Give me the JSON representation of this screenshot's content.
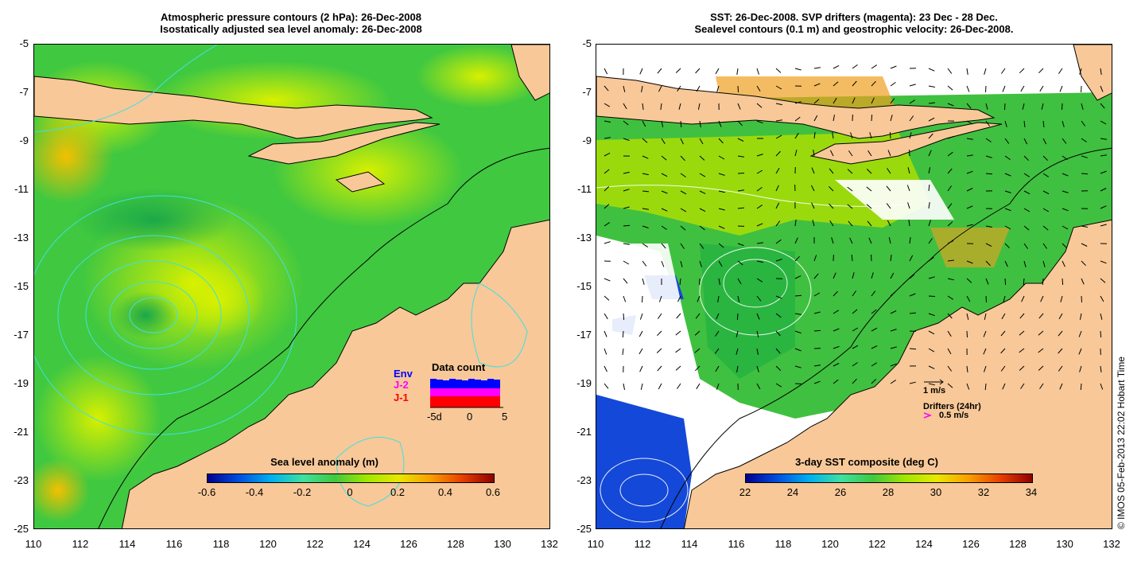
{
  "left_panel": {
    "title_line1": "Atmospheric pressure contours (2 hPa): 26-Dec-2008",
    "title_line2": "Isostatically adjusted sea level anomaly: 26-Dec-2008",
    "colorbar_label": "Sea level anomaly (m)",
    "colorbar_ticks": [
      "-0.6",
      "-0.4",
      "-0.2",
      "0",
      "0.2",
      "0.4",
      "0.6"
    ],
    "inset": {
      "title": "Data count",
      "legend": [
        "Env",
        "J-2",
        "J-1"
      ],
      "legend_colors": [
        "#0000ff",
        "#ff00ff",
        "#ff0000"
      ],
      "x_ticks": [
        "-5d",
        "0",
        "5"
      ]
    }
  },
  "right_panel": {
    "title_line1": "SST: 26-Dec-2008. SVP drifters (magenta): 23 Dec - 28 Dec.",
    "title_line2": "Sealevel contours (0.1 m) and geostrophic velocity: 26-Dec-2008.",
    "colorbar_label": "3-day SST composite (deg C)",
    "colorbar_ticks": [
      "22",
      "24",
      "26",
      "28",
      "30",
      "32",
      "34"
    ],
    "velocity_scale_label": "1 m/s",
    "drifters_label": "Drifters (24hr)",
    "drifter_scale_label": "0.5 m/s"
  },
  "axes": {
    "x_ticks": [
      "110",
      "112",
      "114",
      "116",
      "118",
      "120",
      "122",
      "124",
      "126",
      "128",
      "130",
      "132"
    ],
    "y_ticks": [
      "-5",
      "-7",
      "-9",
      "-11",
      "-13",
      "-15",
      "-17",
      "-19",
      "-21",
      "-23",
      "-25"
    ]
  },
  "copyright": "© IMOS 05-Feb-2013 22:02 Hobart Time",
  "colors": {
    "land": "#f8c898",
    "ocean_green": "#3cc83c",
    "warm_yellow": "#c8f000",
    "cold_blue": "#1448d8"
  }
}
